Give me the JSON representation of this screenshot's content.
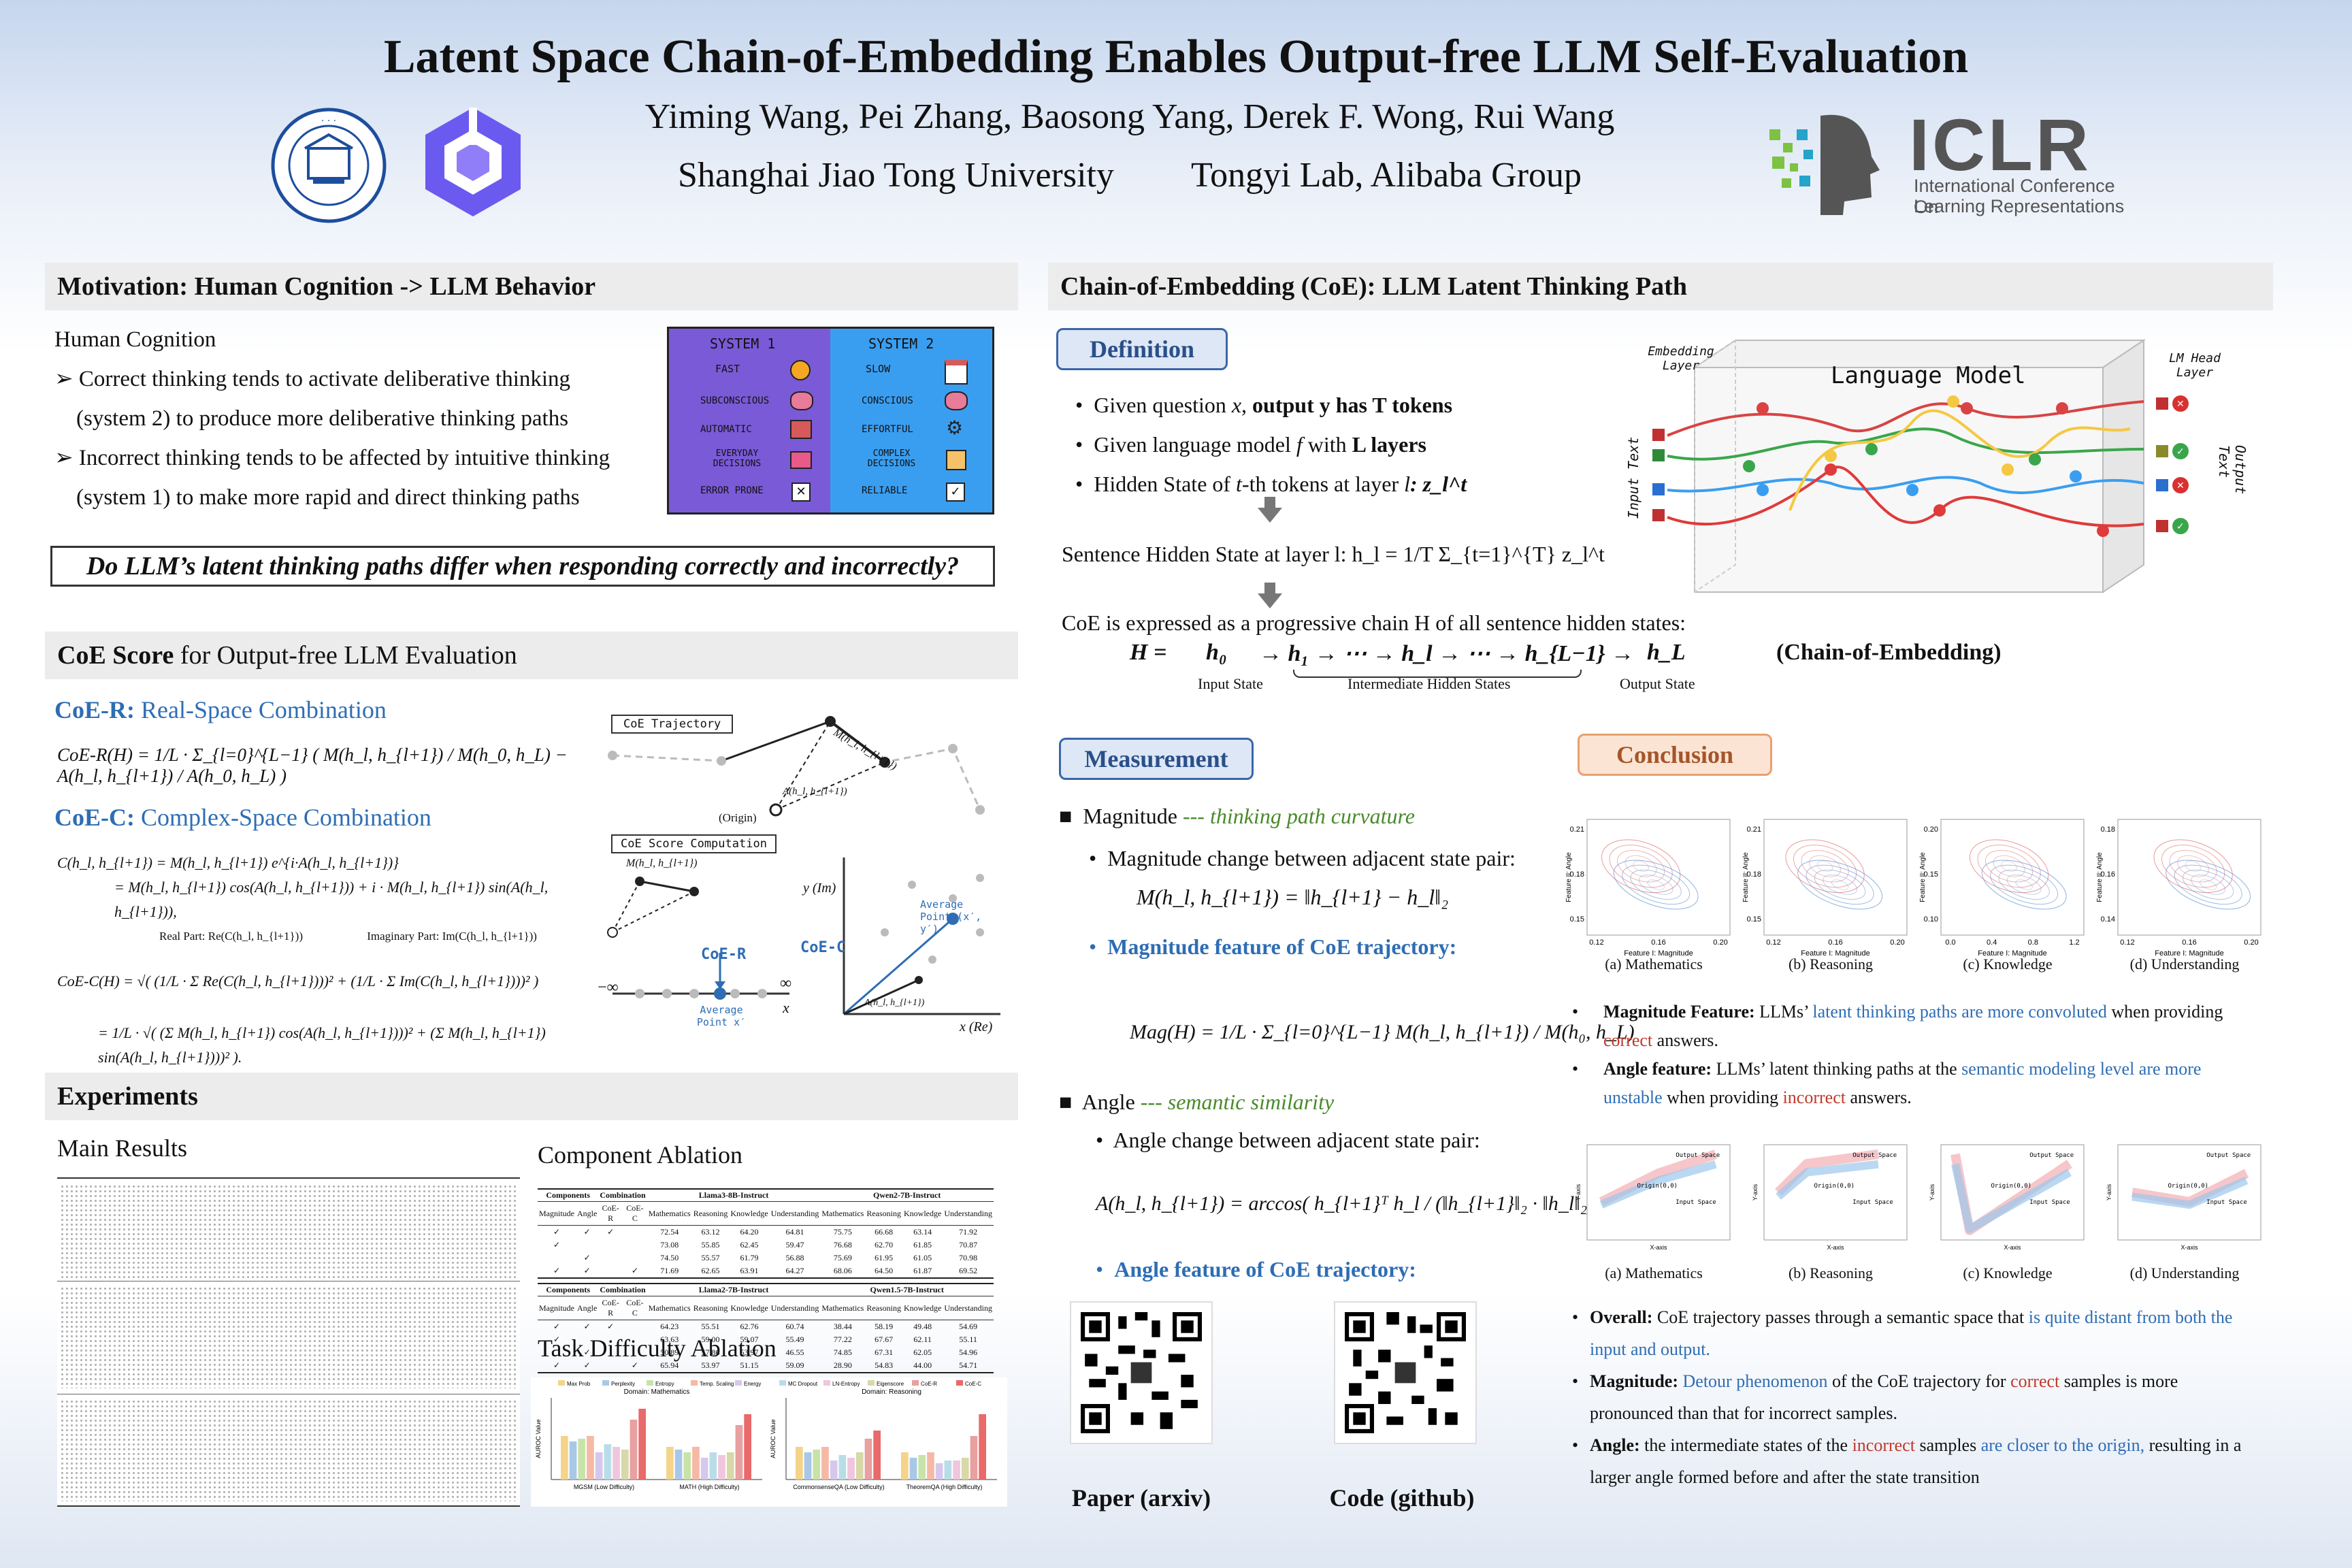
{
  "header": {
    "title": "Latent Space Chain-of-Embedding Enables Output-free LLM Self-Evaluation",
    "authors": "Yiming Wang,  Pei Zhang,  Baosong Yang,  Derek F. Wong,  Rui Wang",
    "affil_1": "Shanghai Jiao Tong University",
    "affil_2": "Tongyi Lab, Alibaba Group",
    "iclr_big": "ICLR",
    "iclr_small_1": "International Conference On",
    "iclr_small_2": "Learning Representations"
  },
  "motivation": {
    "title": "Motivation: Human Cognition -> LLM Behavior",
    "subtitle": "Human Cognition",
    "bullet1_a": "Correct thinking tends to activate deliberative thinking",
    "bullet1_b": "(system 2) to produce more deliberative thinking paths",
    "bullet2_a": "Incorrect thinking tends to be affected by intuitive thinking",
    "bullet2_b": "(system 1) to make more rapid and direct thinking paths",
    "question": "Do LLM’s latent thinking paths differ when responding correctly and incorrectly?",
    "sys1_title": "SYSTEM 1",
    "sys2_title": "SYSTEM 2",
    "sys1_items": [
      "FAST",
      "SUBCONSCIOUS",
      "AUTOMATIC",
      "EVERYDAY DECISIONS",
      "ERROR PRONE"
    ],
    "sys2_items": [
      "SLOW",
      "CONSCIOUS",
      "EFFORTFUL",
      "COMPLEX DECISIONS",
      "RELIABLE"
    ]
  },
  "coe_score": {
    "title_bold": "CoE Score",
    "title_rest": " for Output-free LLM Evaluation",
    "r_head": "CoE-R:",
    "r_desc": " Real-Space Combination",
    "c_head": "CoE-C:",
    "c_desc": " Complex-Space Combination",
    "r_formula": "CoE-R(H) = 1/L · Σ_{l=0}^{L−1} ( M(h_l, h_{l+1}) / M(h_0, h_L) − A(h_l, h_{l+1}) / A(h_0, h_L) )",
    "c_formula_1": "C(h_l, h_{l+1}) = M(h_l, h_{l+1}) e^{i·A(h_l, h_{l+1})}",
    "c_formula_2": "= M(h_l, h_{l+1}) cos(A(h_l, h_{l+1})) + i · M(h_l, h_{l+1}) sin(A(h_l, h_{l+1})),",
    "real_part": "Real Part: Re(C(h_l, h_{l+1}))",
    "imag_part": "Imaginary Part: Im(C(h_l, h_{l+1}))",
    "c_formula_3": "CoE-C(H) = √( (1/L · Σ Re(C(h_l, h_{l+1})))² + (1/L · Σ Im(C(h_l, h_{l+1})))² )",
    "c_formula_4": "= 1/L · √( (Σ M(h_l, h_{l+1}) cos(A(h_l, h_{l+1})))² + (Σ M(h_l, h_{l+1}) sin(A(h_l, h_{l+1})))² ).",
    "traj_label": "CoE Trajectory",
    "score_label": "CoE Score Computation",
    "origin": "(Origin)",
    "coe_r": "CoE-R",
    "coe_c": "CoE-C",
    "avg_point": "Average Point x′",
    "avg_point_2": "Average Point (x′, y′)",
    "y_axis": "y (Im)",
    "x_axis": "x (Re)",
    "x_label": "x",
    "neg_inf": "−∞",
    "pos_inf": "∞",
    "m_label": "M(h_l, h_{l+1})",
    "a_label": "A(h_l, h_{l+1})"
  },
  "experiments": {
    "title": "Experiments",
    "main_results": "Main Results",
    "component_ablation": "Component Ablation",
    "task_difficulty": "Task Difficulty Ablation",
    "abl_headers": [
      "Components",
      "Combination",
      "Llama3-8B-Instruct",
      "Qwen2-7B-Instruct"
    ],
    "abl_headers_2": [
      "Components",
      "Combination",
      "Llama2-7B-Instruct",
      "Qwen1.5-7B-Instruct"
    ],
    "abl_sub": [
      "Magnitude",
      "Angle",
      "CoE-R",
      "CoE-C",
      "Mathematics",
      "Reasoning",
      "Knowledge",
      "Understanding",
      "Mathematics",
      "Reasoning",
      "Knowledge",
      "Understanding"
    ],
    "abl_rows_1": [
      [
        "72.54",
        "63.12",
        "64.20",
        "64.81",
        "75.75",
        "66.68",
        "63.14",
        "71.92"
      ],
      [
        "73.08",
        "55.85",
        "62.45",
        "59.47",
        "76.68",
        "62.70",
        "61.85",
        "70.87"
      ],
      [
        "74.50",
        "55.57",
        "61.79",
        "56.88",
        "75.69",
        "61.95",
        "61.05",
        "70.98"
      ],
      [
        "71.69",
        "62.65",
        "63.91",
        "64.27",
        "68.06",
        "64.50",
        "61.87",
        "69.52"
      ]
    ],
    "abl_rows_2": [
      [
        "64.23",
        "55.51",
        "62.76",
        "60.74",
        "38.44",
        "58.19",
        "49.48",
        "54.69"
      ],
      [
        "63.63",
        "59.00",
        "59.07",
        "55.49",
        "77.22",
        "67.67",
        "62.11",
        "55.11"
      ],
      [
        "50.89",
        "57.86",
        "53.97",
        "46.55",
        "74.85",
        "67.31",
        "62.05",
        "54.96"
      ],
      [
        "65.94",
        "53.97",
        "51.15",
        "59.09",
        "28.90",
        "54.83",
        "44.00",
        "54.71"
      ]
    ],
    "chart_legend": [
      "Max Prob",
      "Perplexity",
      "Entropy",
      "Temp. Scaling",
      "Energy",
      "MC Dropout",
      "LN-Entropy",
      "Eigenscore",
      "CoE-R",
      "CoE-C"
    ],
    "chart_left_title": "Domain: Mathematics",
    "chart_right_title": "Domain: Reasoning",
    "chart_ylabel": "AUROC Value",
    "chart_left_x": [
      "MGSM (Low Difficulty)",
      "MATH (High Difficulty)"
    ],
    "chart_right_x": [
      "CommonsenseQA (Low Difficulty)",
      "TheoremQA (High Difficulty)"
    ]
  },
  "coe_section": {
    "title": "Chain-of-Embedding (CoE):  LLM Latent Thinking Path",
    "definition": "Definition",
    "def1_pre": "Given question ",
    "def1_var": "x",
    "def1_mid": ", ",
    "def1_bold": "output y has T tokens",
    "def2_pre": "Given language model ",
    "def2_var": "f",
    "def2_mid": " with ",
    "def2_bold": "L layers",
    "def3_pre": "Hidden State of ",
    "def3_var": "t",
    "def3_post": "-th tokens at layer ",
    "def3_var2": "l",
    "def3_z": ": z_l^t",
    "sent_hidden": "Sentence Hidden State at layer l: h_l = 1/T Σ_{t=1}^{T} z_l^t",
    "coe_expr": "CoE is expressed as a progressive chain H of all sentence hidden states:",
    "chain_H": "H =",
    "chain_h0": "h₀",
    "chain_mid": "→ h₁ → ⋯ → h_l → ⋯ → h_{L−1} →",
    "chain_hL": "h_L",
    "chain_name": "(Chain-of-Embedding)",
    "input_state": "Input State",
    "inter_state": "Intermediate Hidden States",
    "output_state": "Output State",
    "lm_title": "Language Model",
    "emb_layer": "Embedding Layer",
    "lm_head": "LM Head Layer",
    "input_text": "Input Text",
    "output_text": "Output Text",
    "measurement": "Measurement",
    "magnitude": "Magnitude",
    "magnitude_desc": "--- thinking path curvature",
    "mag_change": "Magnitude change between adjacent state pair:",
    "mag_formula": "M(h_l, h_{l+1}) = ‖h_{l+1} − h_l‖₂",
    "mag_feature": "Magnitude feature of CoE trajectory:",
    "mag_feature_formula": "Mag(H) = 1/L · Σ_{l=0}^{L−1} M(h_l, h_{l+1}) / M(h₀, h_L)",
    "angle": "Angle",
    "angle_desc": "--- semantic similarity",
    "angle_change": "Angle change between adjacent state pair:",
    "angle_formula": "A(h_l, h_{l+1}) = arccos( h_{l+1}ᵀ h_l / (‖h_{l+1}‖₂ · ‖h_l‖₂) )",
    "angle_feature": "Angle feature of CoE trajectory:",
    "paper_label": "Paper (arxiv)",
    "code_label": "Code (github)"
  },
  "conclusion": {
    "title": "Conclusion",
    "captions": [
      "(a) Mathematics",
      "(b) Reasoning",
      "(c) Knowledge",
      "(d) Understanding"
    ],
    "kde_xlabel": "Feature I: Magnitude",
    "kde_ylabel": "Feature II: Angle",
    "kde_yticks": [
      [
        "0.21",
        "0.18",
        "0.15"
      ],
      [
        "0.21",
        "0.18",
        "0.15"
      ],
      [
        "0.20",
        "0.15",
        "0.10"
      ],
      [
        "0.18",
        "0.16",
        "0.14"
      ]
    ],
    "kde_xticks": [
      [
        "0.12",
        "0.16",
        "0.20"
      ],
      [
        "0.12",
        "0.16",
        "0.20"
      ],
      [
        "0.0",
        "0.4",
        "0.8",
        "1.2"
      ],
      [
        "0.12",
        "0.16",
        "0.20"
      ]
    ],
    "traj_labels": [
      "Output Space",
      "Input Space",
      "Origin(0,0)"
    ],
    "traj_xlabel": "X-axis",
    "traj_ylabel": "Y-axis",
    "b1_head": "Magnitude Feature:",
    "b1_t1": " LLMs’ ",
    "b1_blue": "latent thinking paths are more convoluted",
    "b1_t2": " when providing ",
    "b1_red": "correct",
    "b1_t3": " answers.",
    "b2_head": "Angle feature:",
    "b2_t1": " LLMs’ latent thinking paths at the ",
    "b2_blue": "semantic modeling level are more unstable",
    "b2_t2": " when providing ",
    "b2_red": "incorrect",
    "b2_t3": " answers.",
    "o1_head": "Overall:",
    "o1_t1": " CoE trajectory passes through a semantic space that ",
    "o1_blue": "is quite distant from both the input and output.",
    "o2_head": "Magnitude:",
    "o2_blue": " Detour phenomenon",
    "o2_t1": " of the CoE trajectory for ",
    "o2_red": "correct",
    "o2_t2": " samples is more pronounced than that for incorrect samples.",
    "o3_head": "Angle:",
    "o3_t1": " the intermediate states of the ",
    "o3_red": "incorrect",
    "o3_t2": " samples ",
    "o3_blue": "are closer to the origin,",
    "o3_t3": " resulting in a larger angle formed before and after the state transition"
  },
  "chart_data": [
    {
      "type": "bar",
      "title": "Domain: Mathematics",
      "ylabel": "AUROC Value",
      "categories": [
        "MGSM (Low Difficulty)",
        "MATH (High Difficulty)"
      ],
      "ylim": [
        50,
        80
      ],
      "series": [
        {
          "name": "Max Prob",
          "values": [
            66,
            62
          ]
        },
        {
          "name": "Perplexity",
          "values": [
            64,
            61
          ]
        },
        {
          "name": "Entropy",
          "values": [
            65,
            60
          ]
        },
        {
          "name": "Temp. Scaling",
          "values": [
            66,
            62
          ]
        },
        {
          "name": "Energy",
          "values": [
            60,
            58
          ]
        },
        {
          "name": "MC Dropout",
          "values": [
            63,
            60
          ]
        },
        {
          "name": "LN-Entropy",
          "values": [
            62,
            59
          ]
        },
        {
          "name": "Eigenscore",
          "values": [
            61,
            60
          ]
        },
        {
          "name": "CoE-R",
          "values": [
            72,
            70
          ]
        },
        {
          "name": "CoE-C",
          "values": [
            76,
            74
          ]
        }
      ]
    },
    {
      "type": "bar",
      "title": "Domain: Reasoning",
      "ylabel": "AUROC Value",
      "categories": [
        "CommonsenseQA (Low Difficulty)",
        "TheoremQA (High Difficulty)"
      ],
      "ylim": [
        50,
        80
      ],
      "series": [
        {
          "name": "Max Prob",
          "values": [
            62,
            60
          ]
        },
        {
          "name": "Perplexity",
          "values": [
            60,
            58
          ]
        },
        {
          "name": "Entropy",
          "values": [
            61,
            59
          ]
        },
        {
          "name": "Temp. Scaling",
          "values": [
            62,
            60
          ]
        },
        {
          "name": "Energy",
          "values": [
            57,
            56
          ]
        },
        {
          "name": "MC Dropout",
          "values": [
            59,
            57
          ]
        },
        {
          "name": "LN-Entropy",
          "values": [
            58,
            57
          ]
        },
        {
          "name": "Eigenscore",
          "values": [
            60,
            58
          ]
        },
        {
          "name": "CoE-R",
          "values": [
            65,
            66
          ]
        },
        {
          "name": "CoE-C",
          "values": [
            68,
            74
          ]
        }
      ]
    }
  ],
  "colors": {
    "accent_blue": "#2e6db4",
    "accent_red": "#c0392b",
    "sys1_bg": "#7a5ad6",
    "sys2_bg": "#3a9ef0",
    "bar_colors": [
      "#f4d48a",
      "#a9c8e8",
      "#c8e3a8",
      "#f5b9a6",
      "#d6c8ec",
      "#b9dde8",
      "#f0c6de",
      "#d8d8a8",
      "#e8a0a0",
      "#e86a6a"
    ]
  }
}
